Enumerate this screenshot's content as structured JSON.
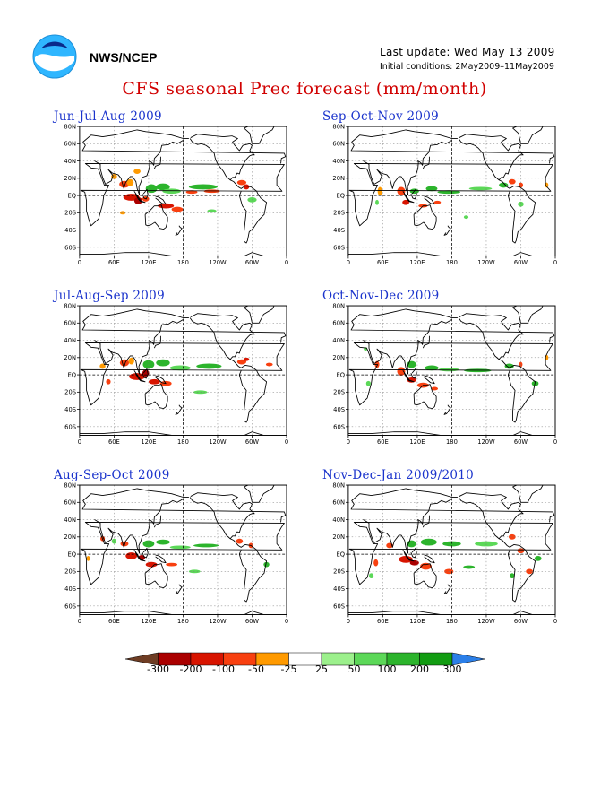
{
  "header": {
    "org": "NWS/NCEP",
    "last_update": "Last update: Wed May 13 2009",
    "initial_conditions": "Initial conditions: 2May2009–11May2009",
    "title": "CFS seasonal Prec forecast (mm/month)"
  },
  "map_axes": {
    "lat_labels": [
      "80N",
      "60N",
      "40N",
      "20N",
      "EQ",
      "20S",
      "40S",
      "60S"
    ],
    "lon_labels": [
      "0",
      "60E",
      "120E",
      "180",
      "120W",
      "60W",
      "0"
    ]
  },
  "panels": [
    {
      "id": "jja",
      "title": "Jun-Jul-Aug 2009"
    },
    {
      "id": "son",
      "title": "Sep-Oct-Nov 2009"
    },
    {
      "id": "jas",
      "title": "Jul-Aug-Sep 2009"
    },
    {
      "id": "ond",
      "title": "Oct-Nov-Dec 2009"
    },
    {
      "id": "aso",
      "title": "Aug-Sep-Oct 2009"
    },
    {
      "id": "ndj",
      "title": "Nov-Dec-Jan 2009/2010"
    }
  ],
  "legend": {
    "labels": [
      "-300",
      "-200",
      "-100",
      "-50",
      "-25",
      "25",
      "50",
      "100",
      "200",
      "300"
    ],
    "colors": [
      "#6e3d24",
      "#aa0000",
      "#d81400",
      "#f84010",
      "#ff9a00",
      "#ffffff",
      "#9cf08c",
      "#5cd858",
      "#2cb42c",
      "#129c12",
      "#2b7fe8"
    ]
  },
  "colors": {
    "title": "#d10000",
    "panel_title": "#1a33cc"
  }
}
